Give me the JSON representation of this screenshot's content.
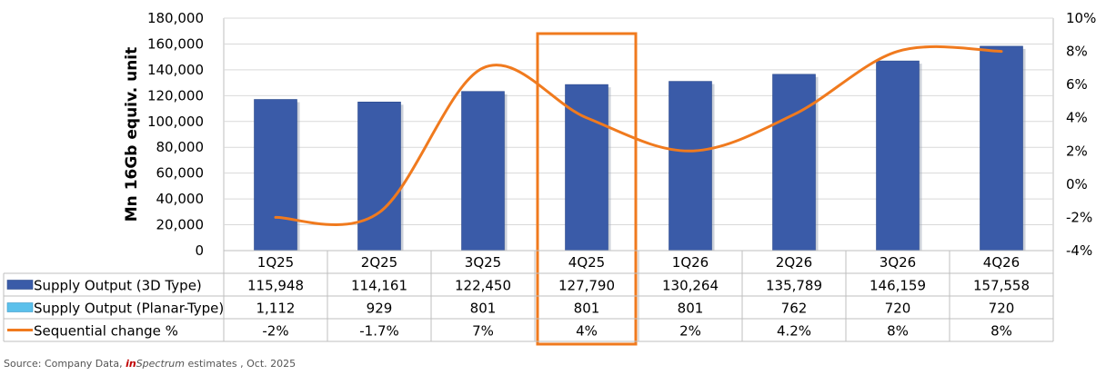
{
  "colors": {
    "bar_3d": "#3a5ba8",
    "bar_planar": "#5bc0eb",
    "line": "#f07a1e",
    "highlight_box": "#f07a1e",
    "grid": "#d9d9d9"
  },
  "chart_data": {
    "type": "bar",
    "categories": [
      "1Q25",
      "2Q25",
      "3Q25",
      "4Q25",
      "1Q26",
      "2Q26",
      "3Q26",
      "4Q26"
    ],
    "ylabel": "Mn 16Gb equiv. unit",
    "ylim": [
      0,
      180000
    ],
    "y_ticks": [
      "0",
      "20,000",
      "40,000",
      "60,000",
      "80,000",
      "100,000",
      "120,000",
      "140,000",
      "160,000",
      "180,000"
    ],
    "y2lim": [
      -4,
      10
    ],
    "y2_ticks": [
      "-4%",
      "-2%",
      "0%",
      "2%",
      "4%",
      "6%",
      "8%",
      "10%"
    ],
    "highlighted_category": "4Q25",
    "series": [
      {
        "name": "Supply Output (3D Type)",
        "kind": "bar",
        "values": [
          115948,
          114161,
          122450,
          127790,
          130264,
          135789,
          146159,
          157558
        ],
        "labels": [
          "115,948",
          "114,161",
          "122,450",
          "127,790",
          "130,264",
          "135,789",
          "146,159",
          "157,558"
        ]
      },
      {
        "name": "Supply Output (Planar-Type)",
        "kind": "bar",
        "values": [
          1112,
          929,
          801,
          801,
          801,
          762,
          720,
          720
        ],
        "labels": [
          "1,112",
          "929",
          "801",
          "801",
          "801",
          "762",
          "720",
          "720"
        ]
      },
      {
        "name": "Sequential change %",
        "kind": "line",
        "axis": "right",
        "values": [
          -2,
          -1.7,
          7,
          4,
          2,
          4.2,
          8,
          8
        ],
        "labels": [
          "-2%",
          "-1.7%",
          "7%",
          "4%",
          "2%",
          "4.2%",
          "8%",
          "8%"
        ]
      }
    ]
  },
  "source": {
    "prefix": "Source: Company Data, ",
    "brand_red": "in",
    "brand_rest": "Spectrum",
    "suffix": " estimates , Oct. 2025"
  }
}
